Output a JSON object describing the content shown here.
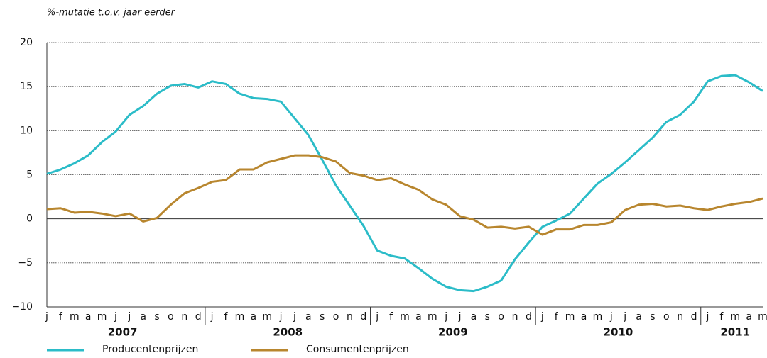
{
  "chart_data": {
    "type": "line",
    "y_label": "%-mutatie t.o.v. jaar eerder",
    "categories": [
      "j",
      "f",
      "m",
      "a",
      "m",
      "j",
      "j",
      "a",
      "s",
      "o",
      "n",
      "d",
      "j",
      "f",
      "m",
      "a",
      "m",
      "j",
      "j",
      "a",
      "s",
      "o",
      "n",
      "d",
      "j",
      "f",
      "m",
      "a",
      "m",
      "j",
      "j",
      "a",
      "s",
      "o",
      "n",
      "d",
      "j",
      "f",
      "m",
      "a",
      "m",
      "j",
      "j",
      "a",
      "s",
      "o",
      "n",
      "d",
      "j",
      "f",
      "m",
      "a",
      "m"
    ],
    "years": [
      "2007",
      "2008",
      "2009",
      "2010",
      "2011"
    ],
    "series": [
      {
        "name": "Producentenprijzen",
        "color": "#2bbcc8",
        "values": [
          5.1,
          5.6,
          6.3,
          7.2,
          8.7,
          9.9,
          11.8,
          12.8,
          14.2,
          15.1,
          15.3,
          14.9,
          15.6,
          15.3,
          14.2,
          13.7,
          13.6,
          13.3,
          11.4,
          9.5,
          6.7,
          3.8,
          1.5,
          -0.8,
          -3.6,
          -4.2,
          -4.5,
          -5.6,
          -6.8,
          -7.7,
          -8.1,
          -8.2,
          -7.7,
          -7.0,
          -4.6,
          -2.7,
          -0.9,
          -0.2,
          0.6,
          2.3,
          4.0,
          5.1,
          6.4,
          7.8,
          9.2,
          11.0,
          11.8,
          13.3,
          15.6,
          16.2,
          16.3,
          15.5,
          14.5
        ]
      },
      {
        "name": "Consumentenprijzen",
        "color": "#b8862e",
        "values": [
          1.1,
          1.2,
          0.7,
          0.8,
          0.6,
          0.3,
          0.6,
          -0.3,
          0.1,
          1.6,
          2.9,
          3.5,
          4.2,
          4.4,
          5.6,
          5.6,
          6.4,
          6.8,
          7.2,
          7.2,
          7.0,
          6.5,
          5.2,
          4.9,
          4.4,
          4.6,
          3.9,
          3.3,
          2.2,
          1.6,
          0.3,
          -0.1,
          -1.0,
          -0.9,
          -1.1,
          -0.9,
          -1.8,
          -1.2,
          -1.2,
          -0.7,
          -0.7,
          -0.4,
          1.0,
          1.6,
          1.7,
          1.4,
          1.5,
          1.2,
          1.0,
          1.4,
          1.7,
          1.9,
          2.3
        ]
      }
    ],
    "ylim": [
      -10,
      20
    ],
    "yticks": [
      {
        "value": -10,
        "label": "−10"
      },
      {
        "value": -5,
        "label": "−5"
      },
      0,
      5,
      10,
      15,
      20
    ],
    "grid": true
  }
}
